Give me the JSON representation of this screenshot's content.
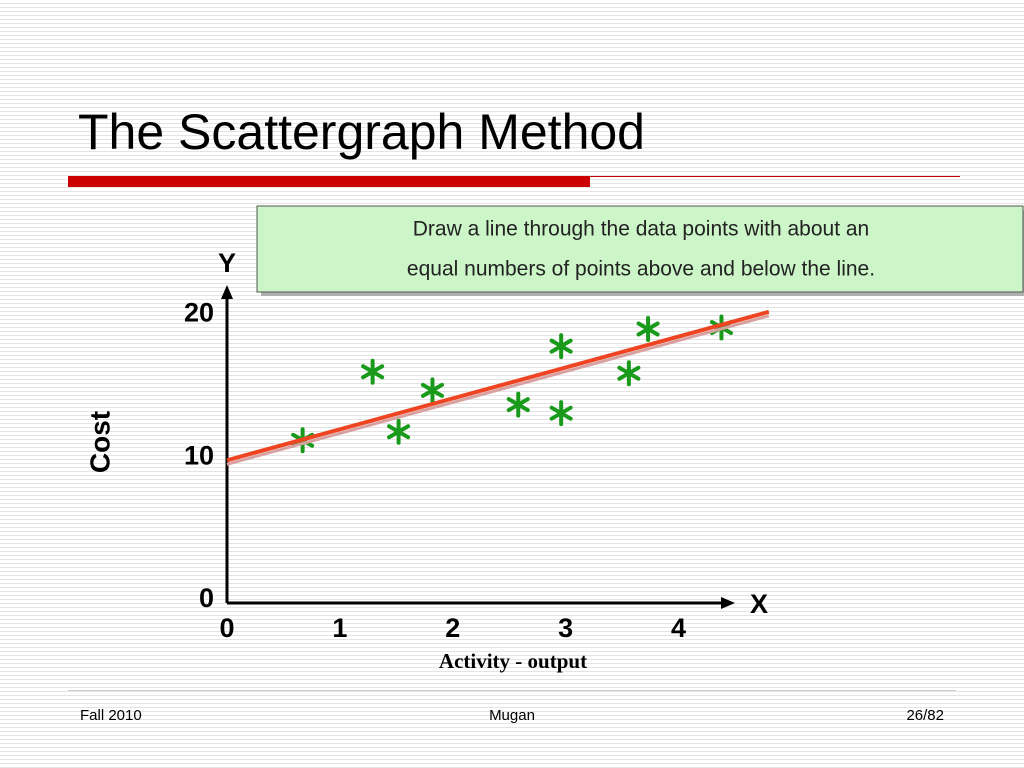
{
  "slide_title": "The Scattergraph Method",
  "chart_data": {
    "type": "scatter",
    "annotation": [
      "Draw a line through the data points with about an",
      "equal numbers of points above and below the line."
    ],
    "x_axis_letter": "X",
    "y_axis_letter": "Y",
    "xlabel": "Activity - output",
    "ylabel": "Cost",
    "x": [
      0.67,
      1.29,
      1.52,
      1.82,
      2.58,
      2.96,
      2.96,
      3.56,
      3.73,
      4.38
    ],
    "series": [
      {
        "color": "#1a9a1a",
        "values": [
          11.4,
          16.2,
          12.0,
          14.9,
          13.9,
          18.0,
          13.3,
          16.1,
          19.2,
          19.3
        ]
      }
    ],
    "trend_line": {
      "color": "#ee4422",
      "x": [
        0,
        4.8
      ],
      "values": [
        10,
        20.4
      ]
    },
    "xlim": [
      0,
      4.5
    ],
    "ylim": [
      0,
      22
    ],
    "xticks": [
      0,
      1,
      2,
      3,
      4
    ],
    "yticks": [
      0,
      10,
      20
    ]
  },
  "footer": {
    "left": "Fall 2010",
    "center": "Mugan",
    "right": "26/82"
  }
}
